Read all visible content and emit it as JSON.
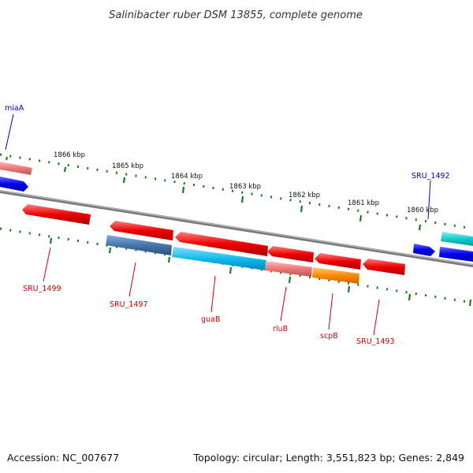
{
  "title": "Salinibacter ruber DSM 13855, complete genome",
  "footer": {
    "accession": "Accession: NC_007677",
    "summary": "Topology: circular; Length: 3,551,823 bp; Genes: 2,849"
  },
  "ruler_ticks": [
    "1866 kbp",
    "1865 kbp",
    "1864 kbp",
    "1863 kbp",
    "1862 kbp",
    "1861 kbp",
    "1860 kbp"
  ],
  "genes": [
    {
      "label": "miaA",
      "color": "#0000cc"
    },
    {
      "label": "SRU_1492",
      "color": "#0000cc"
    },
    {
      "label": "SRU_1499",
      "color": "#cc0000"
    },
    {
      "label": "SRU_1497",
      "color": "#cc0000"
    },
    {
      "label": "guaB",
      "color": "#cc0000"
    },
    {
      "label": "rluB",
      "color": "#cc0000"
    },
    {
      "label": "scpB",
      "color": "#cc0000"
    },
    {
      "label": "SRU_1493",
      "color": "#cc0000"
    }
  ],
  "colors": {
    "backbone": "#888888",
    "ruler": "#1a7a1a",
    "red_gene": "#ee0000",
    "blue_gene": "#0000ee",
    "pink_gene": "#ee7777",
    "steel_gene": "#4477aa",
    "cyan_gene": "#11bbee",
    "teal_gene": "#11cccc",
    "orange_gene": "#ff8800"
  }
}
